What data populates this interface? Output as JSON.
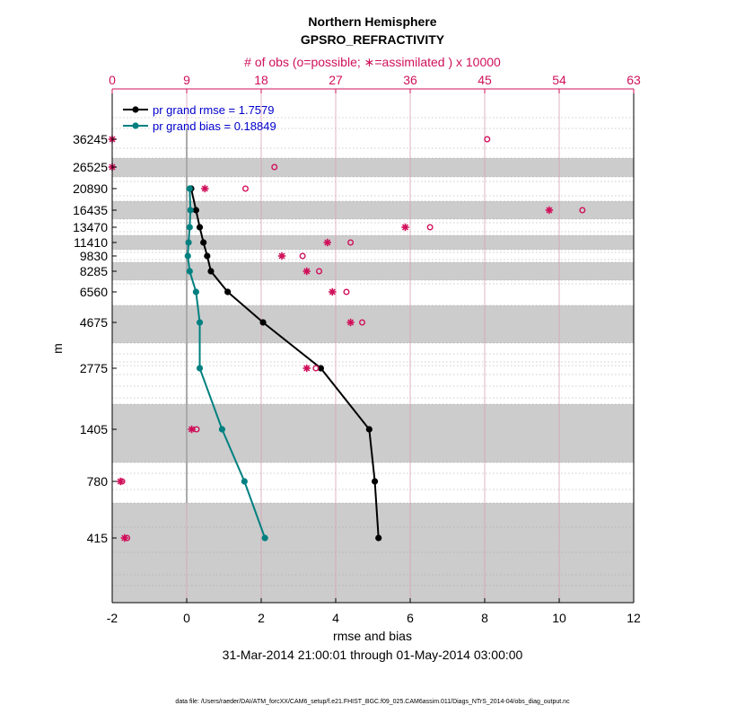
{
  "chart_data": {
    "type": "line",
    "title": "Northern Hemisphere",
    "subtitle": "GPSRO_REFRACTIVITY",
    "top_axis_label": "# of obs (o=possible; ∗=assimilated ) x 10000",
    "xlabel": "rmse and bias",
    "ylabel": "m",
    "date_range": "31-Mar-2014 21:00:01 through 01-May-2014 03:00:00",
    "footer": "data file: /Users/raeder/DAI/ATM_forcXX/CAM6_setup/f.e21.FHIST_BGC.f09_025.CAM6assim.011/Diags_NTrS_2014-04/obs_diag_output.nc",
    "xlim": [
      -2,
      12
    ],
    "x_ticks": [
      "-2",
      "0",
      "2",
      "4",
      "6",
      "8",
      "10",
      "12"
    ],
    "top_xlim": [
      0,
      63
    ],
    "top_ticks": [
      "0",
      "9",
      "18",
      "27",
      "36",
      "45",
      "54",
      "63"
    ],
    "y_levels": [
      "36245",
      "26525",
      "20890",
      "16435",
      "13470",
      "11410",
      "9830",
      "8285",
      "6560",
      "4675",
      "2775",
      "1405",
      "780",
      "415"
    ],
    "grid": true,
    "legend_position": "top-left",
    "colors": {
      "rmse": "#000000",
      "bias": "#008080",
      "obs": "#d0105a",
      "band": "#cccccc",
      "axis_top": "#d0105a",
      "legend_text": "#0000cc"
    },
    "series": [
      {
        "name": "pr grand rmse = 1.7579",
        "color": "#000000",
        "points": [
          {
            "level": "20890",
            "x": 0.12
          },
          {
            "level": "16435",
            "x": 0.25
          },
          {
            "level": "13470",
            "x": 0.35
          },
          {
            "level": "11410",
            "x": 0.45
          },
          {
            "level": "9830",
            "x": 0.55
          },
          {
            "level": "8285",
            "x": 0.65
          },
          {
            "level": "6560",
            "x": 1.1
          },
          {
            "level": "4675",
            "x": 2.05
          },
          {
            "level": "2775",
            "x": 3.6
          },
          {
            "level": "1405",
            "x": 4.9
          },
          {
            "level": "780",
            "x": 5.05
          },
          {
            "level": "415",
            "x": 5.15
          }
        ]
      },
      {
        "name": "pr grand bias = 0.18849",
        "color": "#008080",
        "points": [
          {
            "level": "20890",
            "x": 0.08
          },
          {
            "level": "16435",
            "x": 0.1
          },
          {
            "level": "13470",
            "x": 0.08
          },
          {
            "level": "11410",
            "x": 0.05
          },
          {
            "level": "9830",
            "x": 0.03
          },
          {
            "level": "8285",
            "x": 0.08
          },
          {
            "level": "6560",
            "x": 0.25
          },
          {
            "level": "4675",
            "x": 0.35
          },
          {
            "level": "2775",
            "x": 0.35
          },
          {
            "level": "1405",
            "x": 0.95
          },
          {
            "level": "780",
            "x": 1.55
          },
          {
            "level": "415",
            "x": 2.1
          }
        ]
      }
    ],
    "obs_counts_x10000": [
      {
        "level": "36245",
        "possible": 45.3,
        "assimilated": 0
      },
      {
        "level": "26525",
        "possible": 19.6,
        "assimilated": 0
      },
      {
        "level": "20890",
        "possible": 16.1,
        "assimilated": 11.2
      },
      {
        "level": "16435",
        "possible": 56.8,
        "assimilated": 52.8
      },
      {
        "level": "13470",
        "possible": 38.4,
        "assimilated": 35.4
      },
      {
        "level": "11410",
        "possible": 28.8,
        "assimilated": 26.0
      },
      {
        "level": "9830",
        "possible": 23.0,
        "assimilated": 20.5
      },
      {
        "level": "8285",
        "possible": 25.0,
        "assimilated": 23.5
      },
      {
        "level": "6560",
        "possible": 28.3,
        "assimilated": 26.6
      },
      {
        "level": "4675",
        "possible": 30.2,
        "assimilated": 28.8
      },
      {
        "level": "2775",
        "possible": 24.6,
        "assimilated": 23.5
      },
      {
        "level": "1405",
        "possible": 10.2,
        "assimilated": 9.6
      },
      {
        "level": "780",
        "possible": 1.2,
        "assimilated": 1.0
      },
      {
        "level": "415",
        "possible": 1.8,
        "assimilated": 1.5
      }
    ]
  }
}
